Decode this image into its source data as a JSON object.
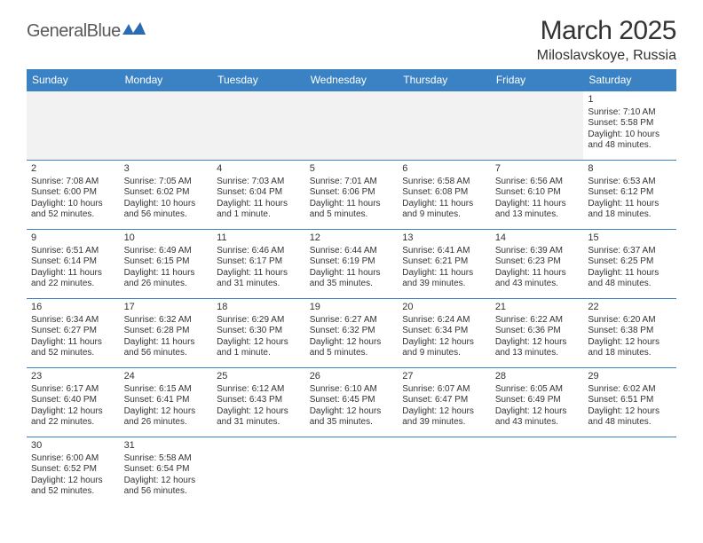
{
  "logo": {
    "text_general": "General",
    "text_blue": "Blue",
    "shape_color": "#2a6bb3"
  },
  "title": "March 2025",
  "location": "Miloslavskoye, Russia",
  "day_headers": [
    "Sunday",
    "Monday",
    "Tuesday",
    "Wednesday",
    "Thursday",
    "Friday",
    "Saturday"
  ],
  "header_bg": "#3a82c4",
  "border_color": "#3a82c4",
  "empty_row_bg": "#f2f2f2",
  "weeks": [
    [
      null,
      null,
      null,
      null,
      null,
      null,
      {
        "n": "1",
        "sr": "Sunrise: 7:10 AM",
        "ss": "Sunset: 5:58 PM",
        "d1": "Daylight: 10 hours",
        "d2": "and 48 minutes."
      }
    ],
    [
      {
        "n": "2",
        "sr": "Sunrise: 7:08 AM",
        "ss": "Sunset: 6:00 PM",
        "d1": "Daylight: 10 hours",
        "d2": "and 52 minutes."
      },
      {
        "n": "3",
        "sr": "Sunrise: 7:05 AM",
        "ss": "Sunset: 6:02 PM",
        "d1": "Daylight: 10 hours",
        "d2": "and 56 minutes."
      },
      {
        "n": "4",
        "sr": "Sunrise: 7:03 AM",
        "ss": "Sunset: 6:04 PM",
        "d1": "Daylight: 11 hours",
        "d2": "and 1 minute."
      },
      {
        "n": "5",
        "sr": "Sunrise: 7:01 AM",
        "ss": "Sunset: 6:06 PM",
        "d1": "Daylight: 11 hours",
        "d2": "and 5 minutes."
      },
      {
        "n": "6",
        "sr": "Sunrise: 6:58 AM",
        "ss": "Sunset: 6:08 PM",
        "d1": "Daylight: 11 hours",
        "d2": "and 9 minutes."
      },
      {
        "n": "7",
        "sr": "Sunrise: 6:56 AM",
        "ss": "Sunset: 6:10 PM",
        "d1": "Daylight: 11 hours",
        "d2": "and 13 minutes."
      },
      {
        "n": "8",
        "sr": "Sunrise: 6:53 AM",
        "ss": "Sunset: 6:12 PM",
        "d1": "Daylight: 11 hours",
        "d2": "and 18 minutes."
      }
    ],
    [
      {
        "n": "9",
        "sr": "Sunrise: 6:51 AM",
        "ss": "Sunset: 6:14 PM",
        "d1": "Daylight: 11 hours",
        "d2": "and 22 minutes."
      },
      {
        "n": "10",
        "sr": "Sunrise: 6:49 AM",
        "ss": "Sunset: 6:15 PM",
        "d1": "Daylight: 11 hours",
        "d2": "and 26 minutes."
      },
      {
        "n": "11",
        "sr": "Sunrise: 6:46 AM",
        "ss": "Sunset: 6:17 PM",
        "d1": "Daylight: 11 hours",
        "d2": "and 31 minutes."
      },
      {
        "n": "12",
        "sr": "Sunrise: 6:44 AM",
        "ss": "Sunset: 6:19 PM",
        "d1": "Daylight: 11 hours",
        "d2": "and 35 minutes."
      },
      {
        "n": "13",
        "sr": "Sunrise: 6:41 AM",
        "ss": "Sunset: 6:21 PM",
        "d1": "Daylight: 11 hours",
        "d2": "and 39 minutes."
      },
      {
        "n": "14",
        "sr": "Sunrise: 6:39 AM",
        "ss": "Sunset: 6:23 PM",
        "d1": "Daylight: 11 hours",
        "d2": "and 43 minutes."
      },
      {
        "n": "15",
        "sr": "Sunrise: 6:37 AM",
        "ss": "Sunset: 6:25 PM",
        "d1": "Daylight: 11 hours",
        "d2": "and 48 minutes."
      }
    ],
    [
      {
        "n": "16",
        "sr": "Sunrise: 6:34 AM",
        "ss": "Sunset: 6:27 PM",
        "d1": "Daylight: 11 hours",
        "d2": "and 52 minutes."
      },
      {
        "n": "17",
        "sr": "Sunrise: 6:32 AM",
        "ss": "Sunset: 6:28 PM",
        "d1": "Daylight: 11 hours",
        "d2": "and 56 minutes."
      },
      {
        "n": "18",
        "sr": "Sunrise: 6:29 AM",
        "ss": "Sunset: 6:30 PM",
        "d1": "Daylight: 12 hours",
        "d2": "and 1 minute."
      },
      {
        "n": "19",
        "sr": "Sunrise: 6:27 AM",
        "ss": "Sunset: 6:32 PM",
        "d1": "Daylight: 12 hours",
        "d2": "and 5 minutes."
      },
      {
        "n": "20",
        "sr": "Sunrise: 6:24 AM",
        "ss": "Sunset: 6:34 PM",
        "d1": "Daylight: 12 hours",
        "d2": "and 9 minutes."
      },
      {
        "n": "21",
        "sr": "Sunrise: 6:22 AM",
        "ss": "Sunset: 6:36 PM",
        "d1": "Daylight: 12 hours",
        "d2": "and 13 minutes."
      },
      {
        "n": "22",
        "sr": "Sunrise: 6:20 AM",
        "ss": "Sunset: 6:38 PM",
        "d1": "Daylight: 12 hours",
        "d2": "and 18 minutes."
      }
    ],
    [
      {
        "n": "23",
        "sr": "Sunrise: 6:17 AM",
        "ss": "Sunset: 6:40 PM",
        "d1": "Daylight: 12 hours",
        "d2": "and 22 minutes."
      },
      {
        "n": "24",
        "sr": "Sunrise: 6:15 AM",
        "ss": "Sunset: 6:41 PM",
        "d1": "Daylight: 12 hours",
        "d2": "and 26 minutes."
      },
      {
        "n": "25",
        "sr": "Sunrise: 6:12 AM",
        "ss": "Sunset: 6:43 PM",
        "d1": "Daylight: 12 hours",
        "d2": "and 31 minutes."
      },
      {
        "n": "26",
        "sr": "Sunrise: 6:10 AM",
        "ss": "Sunset: 6:45 PM",
        "d1": "Daylight: 12 hours",
        "d2": "and 35 minutes."
      },
      {
        "n": "27",
        "sr": "Sunrise: 6:07 AM",
        "ss": "Sunset: 6:47 PM",
        "d1": "Daylight: 12 hours",
        "d2": "and 39 minutes."
      },
      {
        "n": "28",
        "sr": "Sunrise: 6:05 AM",
        "ss": "Sunset: 6:49 PM",
        "d1": "Daylight: 12 hours",
        "d2": "and 43 minutes."
      },
      {
        "n": "29",
        "sr": "Sunrise: 6:02 AM",
        "ss": "Sunset: 6:51 PM",
        "d1": "Daylight: 12 hours",
        "d2": "and 48 minutes."
      }
    ],
    [
      {
        "n": "30",
        "sr": "Sunrise: 6:00 AM",
        "ss": "Sunset: 6:52 PM",
        "d1": "Daylight: 12 hours",
        "d2": "and 52 minutes."
      },
      {
        "n": "31",
        "sr": "Sunrise: 5:58 AM",
        "ss": "Sunset: 6:54 PM",
        "d1": "Daylight: 12 hours",
        "d2": "and 56 minutes."
      },
      null,
      null,
      null,
      null,
      null
    ]
  ]
}
